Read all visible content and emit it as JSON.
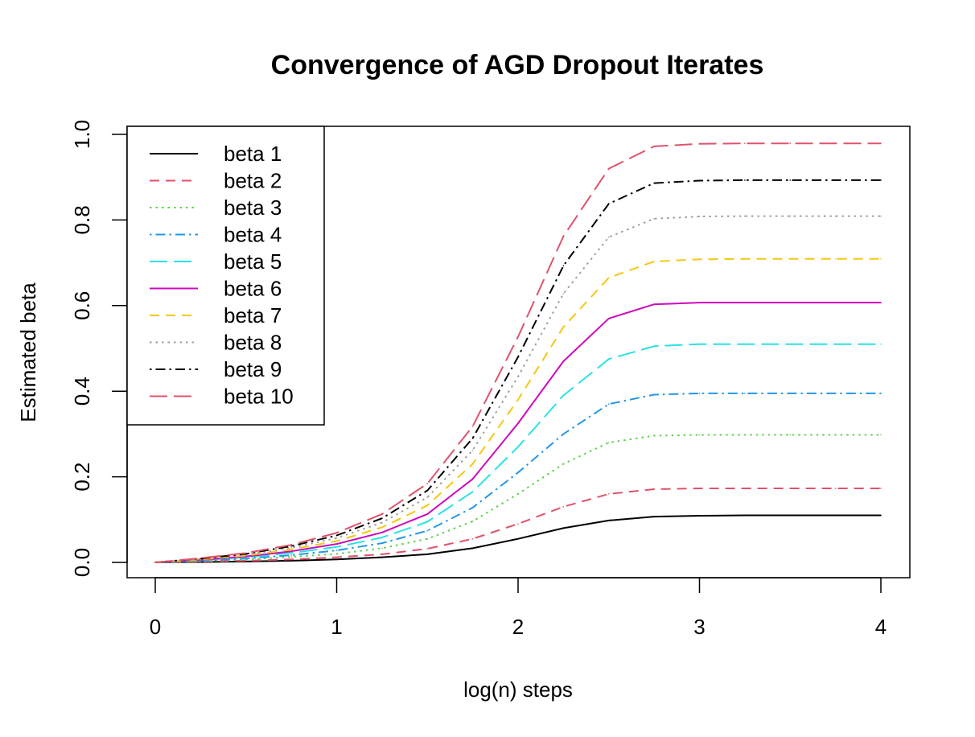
{
  "chart_data": {
    "type": "line",
    "title": "Convergence of AGD Dropout Iterates",
    "xlabel": "log(n) steps",
    "ylabel": "Estimated beta",
    "xlim": [
      0,
      4
    ],
    "ylim": [
      0,
      1
    ],
    "xticks": [
      "0",
      "1",
      "2",
      "3",
      "4"
    ],
    "yticks": [
      "0.0",
      "0.2",
      "0.4",
      "0.6",
      "0.8",
      "1.0"
    ],
    "grid": false,
    "legend_position": "top-left",
    "x": [
      0,
      0.25,
      0.5,
      0.75,
      1.0,
      1.25,
      1.5,
      1.75,
      2.0,
      2.25,
      2.5,
      2.75,
      3.0,
      3.25,
      3.5,
      3.75,
      4.0
    ],
    "series": [
      {
        "name": "beta 1",
        "color": "#000000",
        "dash": "solid",
        "values": [
          0.0,
          0.001,
          0.002,
          0.004,
          0.007,
          0.012,
          0.019,
          0.033,
          0.055,
          0.08,
          0.098,
          0.107,
          0.109,
          0.11,
          0.11,
          0.11,
          0.11
        ]
      },
      {
        "name": "beta 2",
        "color": "#DF536B",
        "dash": "dashed",
        "values": [
          0.0,
          0.002,
          0.004,
          0.007,
          0.012,
          0.019,
          0.032,
          0.055,
          0.09,
          0.13,
          0.16,
          0.171,
          0.173,
          0.173,
          0.173,
          0.173,
          0.173
        ]
      },
      {
        "name": "beta 3",
        "color": "#61D04F",
        "dash": "dotted",
        "values": [
          0.0,
          0.003,
          0.007,
          0.013,
          0.02,
          0.033,
          0.055,
          0.096,
          0.16,
          0.23,
          0.28,
          0.296,
          0.298,
          0.298,
          0.298,
          0.298,
          0.298
        ]
      },
      {
        "name": "beta 4",
        "color": "#2297E6",
        "dash": "dotdash",
        "values": [
          0.0,
          0.004,
          0.009,
          0.017,
          0.028,
          0.045,
          0.074,
          0.128,
          0.21,
          0.3,
          0.37,
          0.392,
          0.395,
          0.395,
          0.395,
          0.395,
          0.395
        ]
      },
      {
        "name": "beta 5",
        "color": "#28E2E5",
        "dash": "longdash",
        "values": [
          0.0,
          0.005,
          0.012,
          0.022,
          0.036,
          0.058,
          0.095,
          0.165,
          0.27,
          0.39,
          0.475,
          0.505,
          0.51,
          0.51,
          0.51,
          0.51,
          0.51
        ]
      },
      {
        "name": "beta 6",
        "color": "#CD0BBC",
        "dash": "solid",
        "values": [
          0.0,
          0.006,
          0.014,
          0.026,
          0.043,
          0.07,
          0.113,
          0.195,
          0.325,
          0.47,
          0.57,
          0.603,
          0.607,
          0.607,
          0.607,
          0.607,
          0.607
        ]
      },
      {
        "name": "beta 7",
        "color": "#F5C710",
        "dash": "dashed",
        "values": [
          0.0,
          0.007,
          0.016,
          0.03,
          0.05,
          0.082,
          0.133,
          0.23,
          0.38,
          0.55,
          0.665,
          0.703,
          0.708,
          0.709,
          0.709,
          0.709,
          0.709
        ]
      },
      {
        "name": "beta 8",
        "color": "#9E9E9E",
        "dash": "dotted",
        "values": [
          0.0,
          0.008,
          0.018,
          0.034,
          0.057,
          0.093,
          0.152,
          0.262,
          0.434,
          0.628,
          0.76,
          0.803,
          0.808,
          0.809,
          0.809,
          0.809,
          0.809
        ]
      },
      {
        "name": "beta 9",
        "color": "#000000",
        "dash": "dotdash",
        "values": [
          0.0,
          0.009,
          0.02,
          0.038,
          0.063,
          0.103,
          0.168,
          0.29,
          0.48,
          0.693,
          0.838,
          0.886,
          0.892,
          0.893,
          0.893,
          0.893,
          0.893
        ]
      },
      {
        "name": "beta 10",
        "color": "#DF536B",
        "dash": "longdash",
        "values": [
          0.0,
          0.01,
          0.022,
          0.041,
          0.069,
          0.113,
          0.184,
          0.318,
          0.527,
          0.762,
          0.92,
          0.972,
          0.978,
          0.979,
          0.979,
          0.979,
          0.979
        ]
      }
    ]
  }
}
